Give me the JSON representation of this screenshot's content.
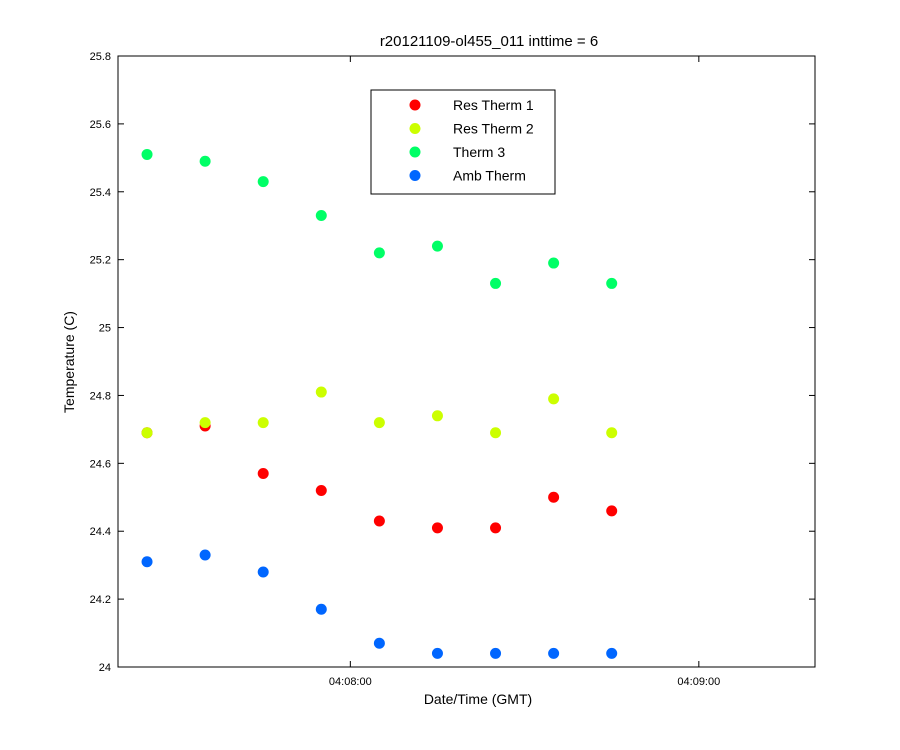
{
  "chart_data": {
    "type": "scatter",
    "title": "r20121109-ol455_011 inttime = 6",
    "xlabel": "Date/Time (GMT)",
    "ylabel": "Temperature (C)",
    "xlim": [
      "04:07:20",
      "04:09:20"
    ],
    "ylim": [
      24,
      25.8
    ],
    "x_ticks": [
      "04:08:00",
      "04:09:00"
    ],
    "y_ticks": [
      "24",
      "24.2",
      "24.4",
      "24.6",
      "24.8",
      "25",
      "25.2",
      "25.4",
      "25.6",
      "25.8"
    ],
    "grid": false,
    "legend_position": "top-center",
    "x": [
      "04:07:25",
      "04:07:35",
      "04:07:45",
      "04:07:55",
      "04:08:05",
      "04:08:15",
      "04:08:25",
      "04:08:35",
      "04:08:45"
    ],
    "series": [
      {
        "name": "Res Therm 1",
        "color": "#ff0000",
        "values": [
          24.69,
          24.71,
          24.57,
          24.52,
          24.43,
          24.41,
          24.41,
          24.5,
          24.46
        ]
      },
      {
        "name": "Res Therm 2",
        "color": "#ccff00",
        "values": [
          24.69,
          24.72,
          24.72,
          24.81,
          24.72,
          24.74,
          24.69,
          24.79,
          24.69
        ]
      },
      {
        "name": "Therm 3",
        "color": "#00ff66",
        "values": [
          25.51,
          25.49,
          25.43,
          25.33,
          25.22,
          25.24,
          25.13,
          25.19,
          25.13
        ]
      },
      {
        "name": "Amb Therm",
        "color": "#0066ff",
        "values": [
          24.31,
          24.33,
          24.28,
          24.17,
          24.07,
          24.04,
          24.04,
          24.04,
          24.04
        ]
      }
    ]
  }
}
